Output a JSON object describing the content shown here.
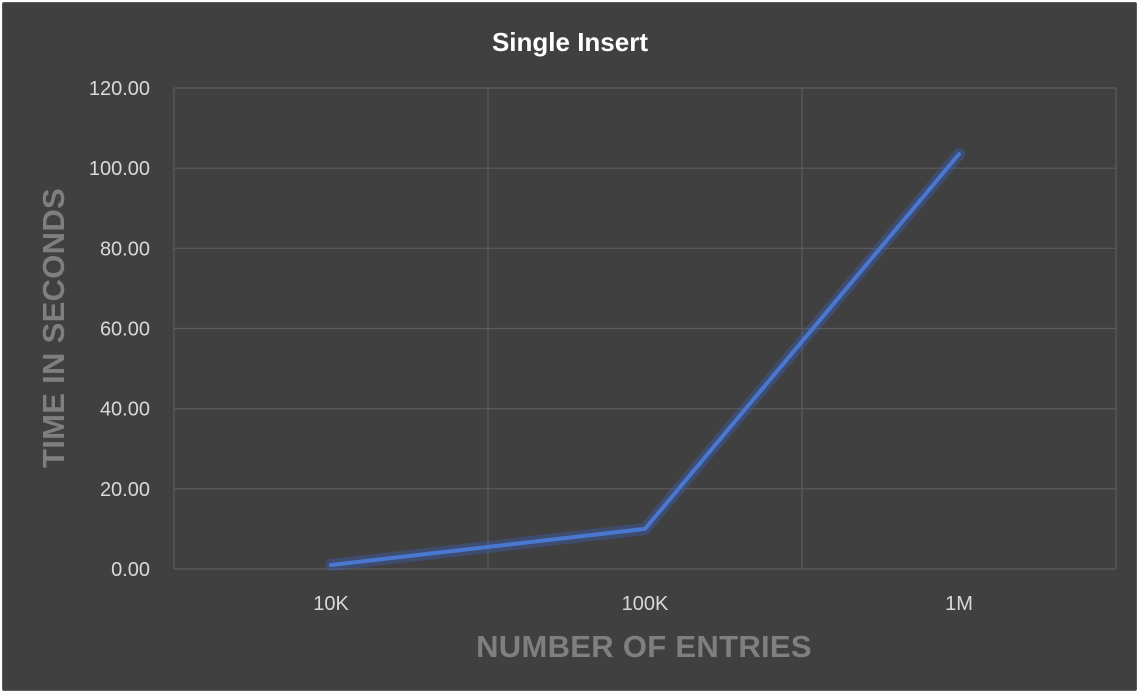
{
  "chart_data": {
    "type": "line",
    "title": "Single Insert",
    "xlabel": "NUMBER OF ENTRIES",
    "ylabel": "TIME IN SECONDS",
    "categories": [
      "10K",
      "100K",
      "1M"
    ],
    "series": [
      {
        "values": [
          1.0,
          10.0,
          103.5
        ]
      }
    ],
    "ylim": [
      0,
      120
    ],
    "ytick_step": 20,
    "ytick_labels": [
      "0.00",
      "20.00",
      "40.00",
      "60.00",
      "80.00",
      "100.00",
      "120.00"
    ],
    "grid": true,
    "legend": "none",
    "colors": {
      "background": "#404040",
      "series": "#4a78d0",
      "grid": "#5c5c5c"
    }
  }
}
